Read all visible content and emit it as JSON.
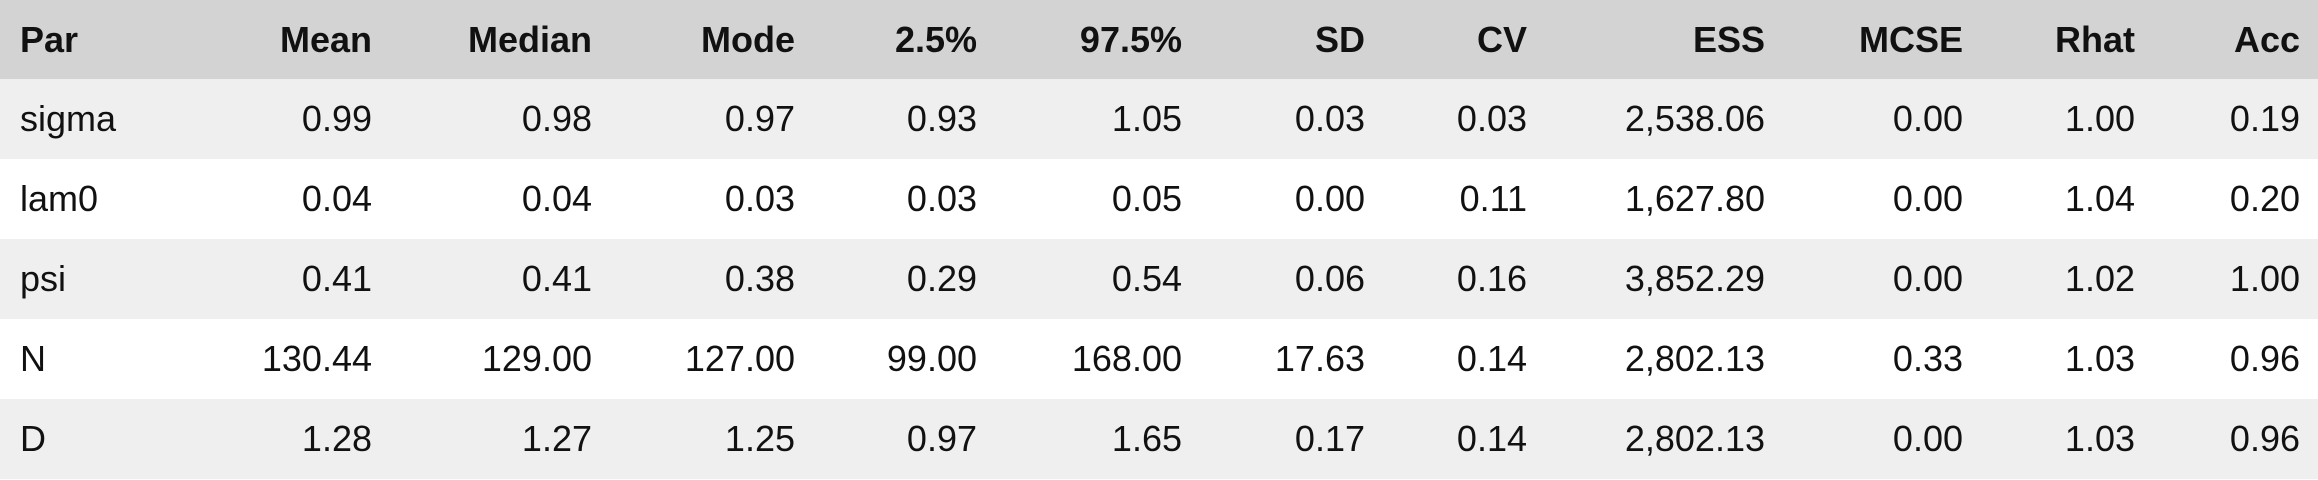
{
  "table": {
    "columns": [
      "Par",
      "Mean",
      "Median",
      "Mode",
      "2.5%",
      "97.5%",
      "SD",
      "CV",
      "ESS",
      "MCSE",
      "Rhat",
      "Acc"
    ],
    "rows": [
      [
        "sigma",
        "0.99",
        "0.98",
        "0.97",
        "0.93",
        "1.05",
        "0.03",
        "0.03",
        "2,538.06",
        "0.00",
        "1.00",
        "0.19"
      ],
      [
        "lam0",
        "0.04",
        "0.04",
        "0.03",
        "0.03",
        "0.05",
        "0.00",
        "0.11",
        "1,627.80",
        "0.00",
        "1.04",
        "0.20"
      ],
      [
        "psi",
        "0.41",
        "0.41",
        "0.38",
        "0.29",
        "0.54",
        "0.06",
        "0.16",
        "3,852.29",
        "0.00",
        "1.02",
        "1.00"
      ],
      [
        "N",
        "130.44",
        "129.00",
        "127.00",
        "99.00",
        "168.00",
        "17.63",
        "0.14",
        "2,802.13",
        "0.33",
        "1.03",
        "0.96"
      ],
      [
        "D",
        "1.28",
        "1.27",
        "1.25",
        "0.97",
        "1.65",
        "0.17",
        "0.14",
        "2,802.13",
        "0.00",
        "1.03",
        "0.96"
      ]
    ]
  }
}
